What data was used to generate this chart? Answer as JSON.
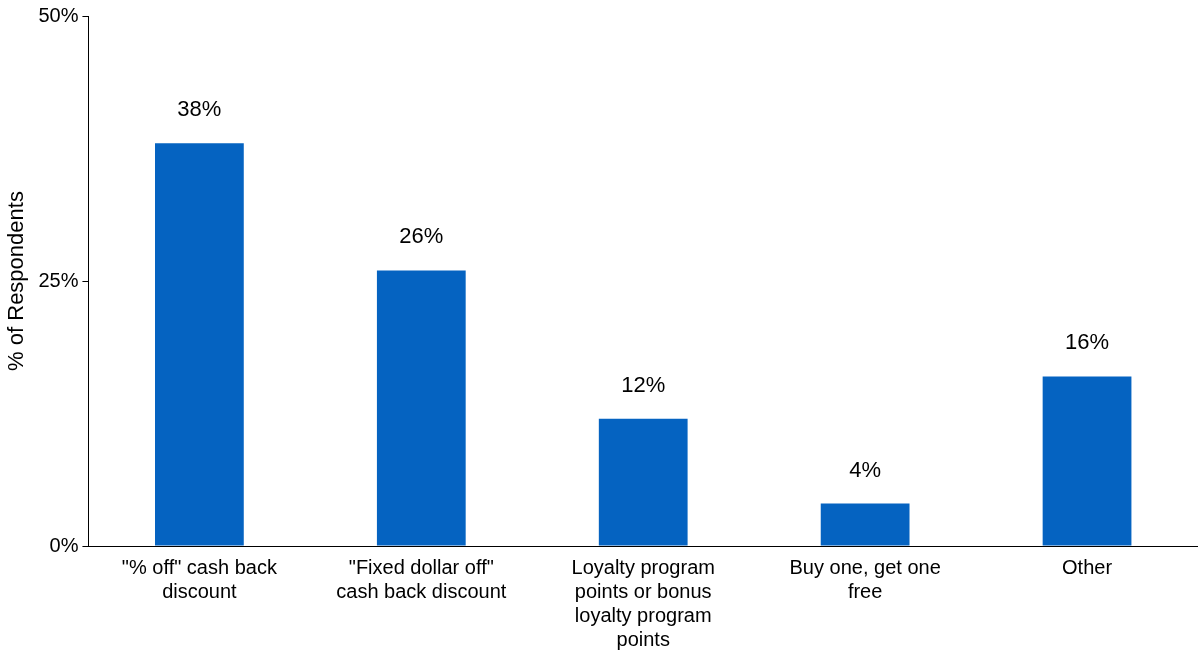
{
  "chart_data": {
    "type": "bar",
    "ylabel": "% of Respondents",
    "categories": [
      "\"% off\" cash back discount",
      "\"Fixed dollar off\" cash back discount",
      "Loyalty program points or bonus loyalty program points",
      "Buy one, get one free",
      "Other"
    ],
    "values": [
      38,
      26,
      12,
      4,
      16
    ],
    "color": "#0563c1",
    "value_labels": [
      "38%",
      "26%",
      "12%",
      "4%",
      "16%"
    ],
    "ylim": [
      0,
      50
    ],
    "yticks": [
      {
        "value": 0,
        "label": "0%"
      },
      {
        "value": 25,
        "label": "25%"
      },
      {
        "value": 50,
        "label": "50%"
      }
    ],
    "grid": false,
    "legend": false
  }
}
